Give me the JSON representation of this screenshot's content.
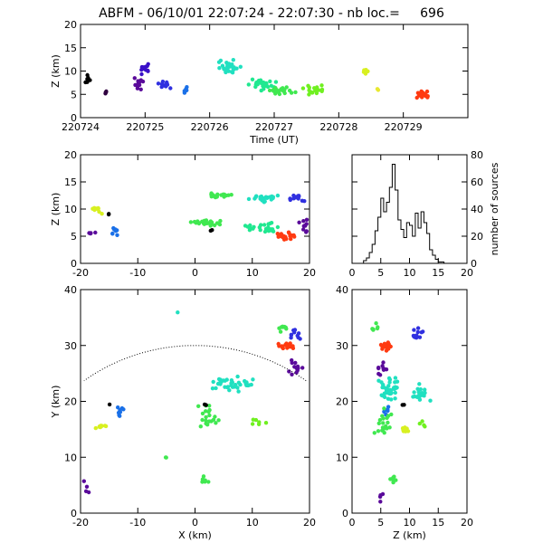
{
  "title": "ABFM - 06/10/01 22:07:24 - 22:07:30 - nb loc.=     696",
  "chart_data": [
    {
      "id": "time_height",
      "type": "scatter",
      "xlabel": "Time (UT)",
      "ylabel": "Z (km)",
      "xlim": [
        220724.0,
        220730.0
      ],
      "ylim": [
        0,
        20
      ],
      "xticks": [
        "220724",
        "220725",
        "220726",
        "220727",
        "220728",
        "220729"
      ],
      "yticks": [
        "0",
        "5",
        "10",
        "15",
        "20"
      ],
      "color_by": "time",
      "clusters": [
        {
          "x": 220724.1,
          "y": 8,
          "n": 8,
          "dx": 0.1,
          "dy": 2,
          "color": "#000000"
        },
        {
          "x": 220724.4,
          "y": 5.5,
          "n": 4,
          "dx": 0.05,
          "dy": 0.5,
          "color": "#300040"
        },
        {
          "x": 220724.9,
          "y": 7,
          "n": 14,
          "dx": 0.2,
          "dy": 2,
          "color": "#5a0a9a"
        },
        {
          "x": 220725.0,
          "y": 10.5,
          "n": 12,
          "dx": 0.15,
          "dy": 2,
          "color": "#3a10c8"
        },
        {
          "x": 220725.3,
          "y": 7,
          "n": 12,
          "dx": 0.15,
          "dy": 1,
          "color": "#3030e0"
        },
        {
          "x": 220725.6,
          "y": 6,
          "n": 6,
          "dx": 0.08,
          "dy": 1,
          "color": "#1a70e8"
        },
        {
          "x": 220726.3,
          "y": 11,
          "n": 30,
          "dx": 0.2,
          "dy": 2,
          "color": "#20e0c0"
        },
        {
          "x": 220726.8,
          "y": 7,
          "n": 30,
          "dx": 0.3,
          "dy": 1.5,
          "color": "#20e890"
        },
        {
          "x": 220727.1,
          "y": 6,
          "n": 25,
          "dx": 0.3,
          "dy": 1,
          "color": "#40e850"
        },
        {
          "x": 220727.6,
          "y": 6,
          "n": 18,
          "dx": 0.2,
          "dy": 1.5,
          "color": "#70f020"
        },
        {
          "x": 220728.4,
          "y": 10,
          "n": 8,
          "dx": 0.1,
          "dy": 1,
          "color": "#d8f020"
        },
        {
          "x": 220728.6,
          "y": 6,
          "n": 2,
          "dx": 0.05,
          "dy": 0.5,
          "color": "#e8e830"
        },
        {
          "x": 220729.3,
          "y": 5,
          "n": 18,
          "dx": 0.15,
          "dy": 1.2,
          "color": "#ff3a10"
        }
      ]
    },
    {
      "id": "x_z",
      "type": "scatter",
      "ylabel": "Z (km)",
      "xlim": [
        -20,
        20
      ],
      "ylim": [
        0,
        20
      ],
      "xticks": [
        "-20",
        "-10",
        "0",
        "10",
        "20"
      ],
      "yticks": [
        "0",
        "5",
        "10",
        "15",
        "20"
      ],
      "clusters": [
        {
          "x": -18,
          "y": 5.5,
          "n": 4,
          "dx": 1,
          "dy": 0.5,
          "color": "#5a0a9a"
        },
        {
          "x": -17,
          "y": 10,
          "n": 10,
          "dx": 1.5,
          "dy": 1,
          "color": "#d8f020"
        },
        {
          "x": -14,
          "y": 6,
          "n": 8,
          "dx": 1.2,
          "dy": 1,
          "color": "#1a70e8"
        },
        {
          "x": -15,
          "y": 9,
          "n": 2,
          "dx": 0.3,
          "dy": 0.3,
          "color": "#000000"
        },
        {
          "x": 4,
          "y": 12.5,
          "n": 20,
          "dx": 3,
          "dy": 0.7,
          "color": "#40e850"
        },
        {
          "x": 12,
          "y": 12,
          "n": 25,
          "dx": 3,
          "dy": 1,
          "color": "#20e0c0"
        },
        {
          "x": 18,
          "y": 12,
          "n": 14,
          "dx": 2,
          "dy": 1,
          "color": "#3030e0"
        },
        {
          "x": 2,
          "y": 7.5,
          "n": 25,
          "dx": 4,
          "dy": 0.8,
          "color": "#40e850"
        },
        {
          "x": 12,
          "y": 6.5,
          "n": 30,
          "dx": 4,
          "dy": 1.3,
          "color": "#20e890"
        },
        {
          "x": 16,
          "y": 5,
          "n": 25,
          "dx": 2.5,
          "dy": 1,
          "color": "#ff3a10"
        },
        {
          "x": 19,
          "y": 7,
          "n": 10,
          "dx": 1,
          "dy": 1.5,
          "color": "#5a0a9a"
        },
        {
          "x": 3,
          "y": 6,
          "n": 2,
          "dx": 0.5,
          "dy": 0.5,
          "color": "#000000"
        }
      ]
    },
    {
      "id": "z_histogram",
      "type": "bar",
      "ylabel": "number of sources",
      "xlim": [
        0,
        20
      ],
      "ylim": [
        0,
        80
      ],
      "xticks": [
        "0",
        "5",
        "10",
        "15",
        "20"
      ],
      "yticks": [
        "0",
        "20",
        "40",
        "60",
        "80"
      ],
      "bin_width": 0.5,
      "bin_start": 2.0,
      "values": [
        2,
        4,
        8,
        14,
        24,
        34,
        48,
        38,
        45,
        56,
        73,
        54,
        32,
        25,
        19,
        30,
        28,
        20,
        37,
        26,
        38,
        30,
        22,
        10,
        6,
        3,
        1,
        1
      ]
    },
    {
      "id": "x_y",
      "type": "scatter",
      "xlabel": "X (km)",
      "ylabel": "Y (km)",
      "xlim": [
        -20,
        20
      ],
      "ylim": [
        0,
        40
      ],
      "xticks": [
        "-20",
        "-10",
        "0",
        "10",
        "20"
      ],
      "yticks": [
        "0",
        "10",
        "20",
        "30",
        "40"
      ],
      "range_circle": {
        "center_x": 0,
        "center_y": -3,
        "radius": 33
      },
      "clusters": [
        {
          "x": -19,
          "y": 4,
          "n": 4,
          "dx": 0.8,
          "dy": 2,
          "color": "#5a0a9a"
        },
        {
          "x": -16.5,
          "y": 15.5,
          "n": 10,
          "dx": 1.7,
          "dy": 1,
          "color": "#d8f020"
        },
        {
          "x": -13,
          "y": 18,
          "n": 8,
          "dx": 1,
          "dy": 1.5,
          "color": "#1a70e8"
        },
        {
          "x": -15,
          "y": 19.5,
          "n": 1,
          "dx": 0.2,
          "dy": 0.2,
          "color": "#000000"
        },
        {
          "x": 6,
          "y": 23,
          "n": 40,
          "dx": 6,
          "dy": 2,
          "color": "#20e0c0"
        },
        {
          "x": 2,
          "y": 17,
          "n": 20,
          "dx": 3,
          "dy": 3,
          "color": "#40e850"
        },
        {
          "x": 1.5,
          "y": 6,
          "n": 8,
          "dx": 1,
          "dy": 1,
          "color": "#40e850"
        },
        {
          "x": 11,
          "y": 16,
          "n": 6,
          "dx": 2,
          "dy": 1,
          "color": "#70f020"
        },
        {
          "x": 15,
          "y": 33,
          "n": 8,
          "dx": 2,
          "dy": 1,
          "color": "#40e850"
        },
        {
          "x": 16,
          "y": 30,
          "n": 20,
          "dx": 2.5,
          "dy": 1,
          "color": "#ff3a10"
        },
        {
          "x": 17.5,
          "y": 32,
          "n": 10,
          "dx": 1.5,
          "dy": 1.5,
          "color": "#3030e0"
        },
        {
          "x": 17.5,
          "y": 26,
          "n": 12,
          "dx": 2,
          "dy": 2,
          "color": "#5a0a9a"
        },
        {
          "x": 2,
          "y": 19.5,
          "n": 2,
          "dx": 0.5,
          "dy": 0.5,
          "color": "#000000"
        },
        {
          "x": -3,
          "y": 36,
          "n": 1,
          "dx": 0.2,
          "dy": 0.2,
          "color": "#20e0c0"
        },
        {
          "x": -5,
          "y": 10,
          "n": 2,
          "dx": 0.5,
          "dy": 0.5,
          "color": "#40e850"
        }
      ]
    },
    {
      "id": "z_y",
      "type": "scatter",
      "xlabel": "Z (km)",
      "xlim": [
        0,
        20
      ],
      "ylim": [
        0,
        40
      ],
      "xticks": [
        "0",
        "5",
        "10",
        "15",
        "20"
      ],
      "yticks": [
        "0",
        "10",
        "20",
        "30",
        "40"
      ],
      "clusters": [
        {
          "x": 5,
          "y": 3,
          "n": 4,
          "dx": 1,
          "dy": 1.5,
          "color": "#5a0a9a"
        },
        {
          "x": 7,
          "y": 6,
          "n": 6,
          "dx": 1,
          "dy": 1,
          "color": "#40e850"
        },
        {
          "x": 9.5,
          "y": 15,
          "n": 10,
          "dx": 1.2,
          "dy": 1,
          "color": "#d8f020"
        },
        {
          "x": 6,
          "y": 18,
          "n": 8,
          "dx": 1,
          "dy": 1.5,
          "color": "#1a70e8"
        },
        {
          "x": 6.5,
          "y": 22,
          "n": 40,
          "dx": 2.2,
          "dy": 3,
          "color": "#20e0c0"
        },
        {
          "x": 5.5,
          "y": 16,
          "n": 20,
          "dx": 2,
          "dy": 4,
          "color": "#40e850"
        },
        {
          "x": 12,
          "y": 21,
          "n": 20,
          "dx": 2,
          "dy": 2.5,
          "color": "#20e0c0"
        },
        {
          "x": 6,
          "y": 30,
          "n": 20,
          "dx": 1.5,
          "dy": 1.2,
          "color": "#ff3a10"
        },
        {
          "x": 11.5,
          "y": 32,
          "n": 12,
          "dx": 1.2,
          "dy": 1.5,
          "color": "#3030e0"
        },
        {
          "x": 5,
          "y": 26,
          "n": 10,
          "dx": 1.5,
          "dy": 1.5,
          "color": "#5a0a9a"
        },
        {
          "x": 4,
          "y": 33,
          "n": 6,
          "dx": 0.8,
          "dy": 1.5,
          "color": "#40e850"
        },
        {
          "x": 9,
          "y": 19.5,
          "n": 2,
          "dx": 0.3,
          "dy": 0.5,
          "color": "#000000"
        },
        {
          "x": 12,
          "y": 16,
          "n": 4,
          "dx": 1,
          "dy": 1,
          "color": "#70f020"
        }
      ]
    }
  ]
}
